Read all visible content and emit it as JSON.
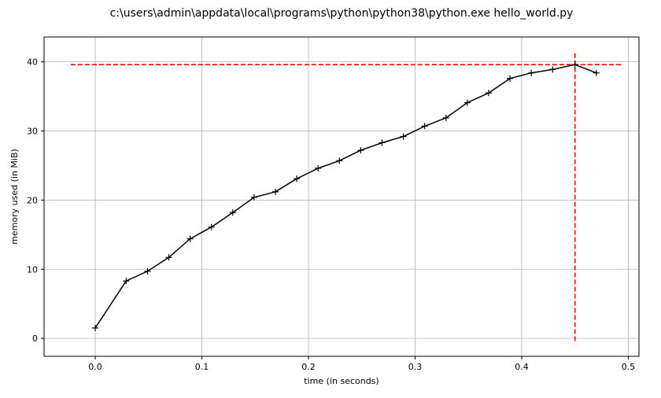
{
  "chart_data": {
    "type": "line",
    "title": "c:\\users\\admin\\appdata\\local\\programs\\python\\python38\\python.exe hello_world.py",
    "xlabel": "time (in seconds)",
    "ylabel": "memory used (in MiB)",
    "xlim": [
      -0.048,
      0.51
    ],
    "ylim": [
      -2.6,
      43.6
    ],
    "xticks": [
      0.0,
      0.1,
      0.2,
      0.3,
      0.4,
      0.5
    ],
    "xtick_labels": [
      "0.0",
      "0.1",
      "0.2",
      "0.3",
      "0.4",
      "0.5"
    ],
    "yticks": [
      0,
      10,
      20,
      30,
      40
    ],
    "ytick_labels": [
      "0",
      "10",
      "20",
      "30",
      "40"
    ],
    "grid": true,
    "series": [
      {
        "color": "#000000",
        "marker": "+",
        "x": [
          0.0,
          0.029,
          0.049,
          0.069,
          0.089,
          0.109,
          0.129,
          0.149,
          0.169,
          0.189,
          0.209,
          0.229,
          0.249,
          0.269,
          0.289,
          0.309,
          0.329,
          0.349,
          0.369,
          0.389,
          0.409,
          0.429,
          0.45,
          0.47
        ],
        "y": [
          1.5,
          8.3,
          9.7,
          11.7,
          14.4,
          16.1,
          18.2,
          20.4,
          21.2,
          23.1,
          24.6,
          25.7,
          27.2,
          28.3,
          29.2,
          30.7,
          31.9,
          34.1,
          35.5,
          37.6,
          38.4,
          38.9,
          39.6,
          38.4
        ]
      }
    ],
    "annotations": [
      {
        "type": "hline",
        "y": 39.6,
        "x_from": -0.023,
        "x_to": 0.493,
        "color": "#ff0000",
        "style": "dashed"
      },
      {
        "type": "vline",
        "x": 0.45,
        "y_from": -0.4,
        "y_to": 41.5,
        "color": "#ff0000",
        "style": "dashed"
      }
    ],
    "grid_color": "#b0b0b0"
  }
}
